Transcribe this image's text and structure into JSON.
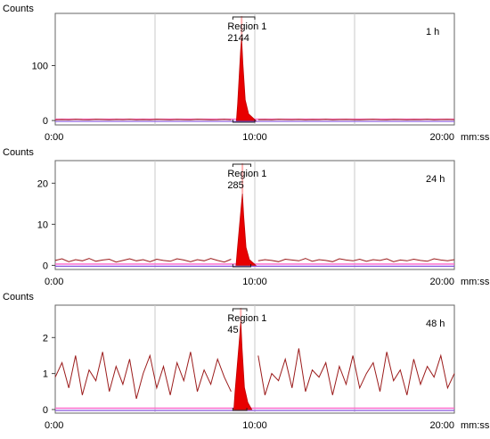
{
  "chart_data": [
    {
      "type": "line",
      "ylabel": "Counts",
      "xunit": "mm:ss",
      "x_ticks": [
        "0:00",
        "10:00",
        "20:00"
      ],
      "xlim": [
        0,
        20
      ],
      "ylim": [
        -8,
        195
      ],
      "y_ticks": [
        0,
        100
      ],
      "time_label": "1 h",
      "region": {
        "label": "Region 1",
        "value": "2144",
        "start": 8.9,
        "end": 10.0
      },
      "peak": {
        "start": 9.08,
        "apex": 9.34,
        "end": 10.05,
        "height": 150
      },
      "noise": [
        1.5,
        1.8,
        1.2,
        2.0,
        1.6,
        1.4,
        2.2,
        1.7,
        1.3,
        1.9,
        1.6,
        2.1,
        1.4,
        1.8,
        1.5,
        2.0,
        1.7,
        1.3,
        1.9,
        1.6,
        1.5,
        2.1,
        1.8,
        1.4,
        1.6,
        2.0,
        1.5,
        1.7,
        1.9,
        1.4,
        1.6,
        1.8,
        1.5,
        2.0,
        1.7,
        1.6,
        1.9,
        1.5,
        1.8,
        1.6,
        2.1,
        1.4,
        1.7,
        1.9,
        1.6,
        1.5,
        1.8,
        2.0,
        1.6,
        1.4,
        1.9,
        1.7,
        1.5,
        1.8,
        1.6,
        2.0,
        1.5,
        1.7,
        1.9,
        1.6
      ]
    },
    {
      "type": "line",
      "ylabel": "Counts",
      "xunit": "mm:ss",
      "x_ticks": [
        "0:00",
        "10:00",
        "20:00"
      ],
      "xlim": [
        0,
        20
      ],
      "ylim": [
        -1,
        25.5
      ],
      "y_ticks": [
        0,
        10,
        20
      ],
      "time_label": "24 h",
      "region": {
        "label": "Region 1",
        "value": "285",
        "start": 8.9,
        "end": 9.8
      },
      "peak": {
        "start": 9.06,
        "apex": 9.38,
        "end": 10.05,
        "height": 17.5
      },
      "noise": [
        1.2,
        1.6,
        0.9,
        1.4,
        1.1,
        1.7,
        1.0,
        1.3,
        1.5,
        0.8,
        1.2,
        1.6,
        1.1,
        1.4,
        0.9,
        1.5,
        1.2,
        1.0,
        1.6,
        1.3,
        0.9,
        1.4,
        1.1,
        1.7,
        1.2,
        0.8,
        1.5,
        1.3,
        1.0,
        1.6,
        1.1,
        1.4,
        1.2,
        0.9,
        1.5,
        1.3,
        1.1,
        1.7,
        1.0,
        1.4,
        1.2,
        0.9,
        1.6,
        1.3,
        1.1,
        1.5,
        1.0,
        1.4,
        1.2,
        1.6,
        0.9,
        1.3,
        1.1,
        1.5,
        1.2,
        1.0,
        1.6,
        1.3,
        1.1,
        1.4
      ]
    },
    {
      "type": "line",
      "ylabel": "Counts",
      "xunit": "mm:ss",
      "x_ticks": [
        "0:00",
        "10:00",
        "20:00"
      ],
      "xlim": [
        0,
        20
      ],
      "ylim": [
        -0.1,
        2.9
      ],
      "y_ticks": [
        0,
        1,
        2
      ],
      "time_label": "48 h",
      "region": {
        "label": "Region 1",
        "value": "45",
        "start": 8.9,
        "end": 9.6
      },
      "peak": {
        "start": 8.95,
        "apex": 9.3,
        "end": 9.85,
        "height": 2.45
      },
      "noise": [
        0.9,
        1.3,
        0.6,
        1.5,
        0.4,
        1.1,
        0.8,
        1.6,
        0.5,
        1.2,
        0.7,
        1.4,
        0.3,
        1.0,
        1.5,
        0.6,
        1.2,
        0.4,
        1.3,
        0.8,
        1.6,
        0.5,
        1.1,
        0.7,
        1.4,
        0.9,
        0.5,
        1.3,
        0.6,
        1.2,
        1.5,
        0.4,
        1.0,
        0.8,
        1.4,
        0.6,
        1.7,
        0.5,
        1.1,
        0.9,
        1.3,
        0.4,
        1.2,
        0.7,
        1.5,
        0.6,
        1.0,
        1.3,
        0.5,
        1.6,
        0.8,
        1.1,
        0.4,
        1.4,
        0.7,
        1.2,
        0.9,
        1.5,
        0.6,
        1.0
      ]
    }
  ]
}
